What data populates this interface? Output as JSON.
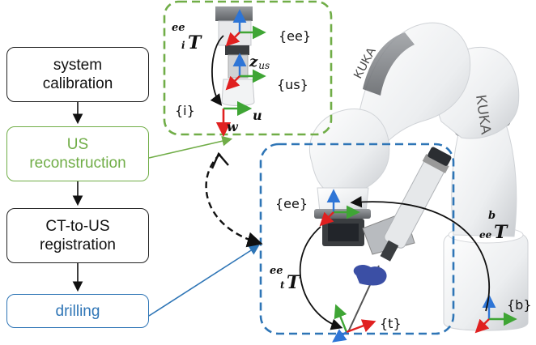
{
  "workflow": {
    "step1": {
      "line1": "system",
      "line2": "calibration"
    },
    "step2": {
      "line1": "US",
      "line2": "reconstruction"
    },
    "step3": {
      "line1": "CT-to-US",
      "line2": "registration"
    },
    "step4": {
      "line1": "drilling"
    }
  },
  "frames": {
    "ee_top": "{ee}",
    "us": "{us}",
    "i": "{i}",
    "ee_mid": "{ee}",
    "t": "{t}",
    "b": "{b}"
  },
  "axes": {
    "z_us": "z",
    "z_us_sub": "us",
    "w": "w",
    "u": "u"
  },
  "transforms": {
    "ee_i": {
      "sup": "ee",
      "sub": "i",
      "main": "T"
    },
    "ee_t": {
      "sup": "ee",
      "sub": "t",
      "main": "T"
    },
    "b_ee": {
      "sup": "b",
      "sub": "ee",
      "main": "T"
    }
  },
  "colors": {
    "green": "#70ad47",
    "blue": "#2e75b6",
    "axis_red": "#e02020",
    "axis_green": "#3fa535",
    "axis_blue": "#2e75d6"
  }
}
